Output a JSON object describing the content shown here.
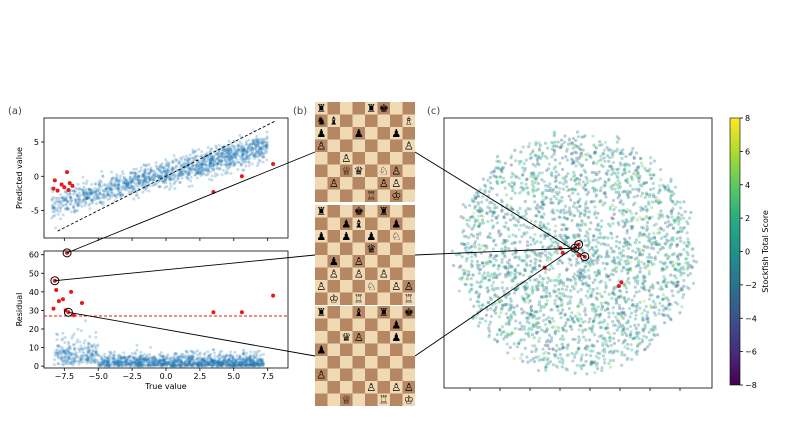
{
  "panels": {
    "a": "(a)",
    "b": "(b)",
    "c": "(c)"
  },
  "colors": {
    "scatter": "#1f77b4",
    "highlight": "#e41a1c",
    "light_square": "#f0d9b5",
    "dark_square": "#b58863"
  },
  "chart_data": [
    {
      "id": "predicted-vs-true",
      "type": "scatter",
      "title": "",
      "xlabel": "",
      "ylabel": "Predicted value",
      "xlim": [
        -9,
        9
      ],
      "ylim": [
        -9,
        8.5
      ],
      "yticks": [
        -5,
        0,
        5
      ],
      "xticks_unlabeled": [
        -7.5,
        -5,
        -2.5,
        0,
        2.5,
        5,
        7.5
      ],
      "bulk_series": {
        "description_points": "dense cloud of ~8000 points, roughly predicted = 0.6*true + noise",
        "x_range": [
          -8.5,
          7.5
        ],
        "slope": 0.55,
        "spread": 1.2
      },
      "reference_line": {
        "style": "dashed",
        "color": "#000000",
        "from": [
          -8,
          -8
        ],
        "to": [
          8,
          8
        ]
      },
      "outliers": [
        {
          "x": -8.3,
          "y": -1.8
        },
        {
          "x": -8.2,
          "y": -0.6
        },
        {
          "x": -8.0,
          "y": -2.1
        },
        {
          "x": -7.7,
          "y": -1.2
        },
        {
          "x": -7.5,
          "y": -1.6
        },
        {
          "x": -7.3,
          "y": 0.6
        },
        {
          "x": -7.1,
          "y": -1.0
        },
        {
          "x": -6.9,
          "y": -1.4
        },
        {
          "x": -7.2,
          "y": -2.0
        },
        {
          "x": 3.5,
          "y": -2.3
        },
        {
          "x": 5.6,
          "y": 0.0
        },
        {
          "x": 7.9,
          "y": 1.8
        }
      ]
    },
    {
      "id": "residual-vs-true",
      "type": "scatter",
      "title": "",
      "xlabel": "True value",
      "ylabel": "Residual",
      "xlim": [
        -9,
        9
      ],
      "ylim": [
        -1,
        62
      ],
      "xticks": [
        -7.5,
        -5.0,
        -2.5,
        0.0,
        2.5,
        5.0,
        7.5
      ],
      "xtick_labels": [
        "−7.5",
        "−5.0",
        "−2.5",
        "0.0",
        "2.5",
        "5.0",
        "7.5"
      ],
      "yticks": [
        0,
        10,
        20,
        30,
        40,
        50,
        60
      ],
      "threshold": {
        "value": 27,
        "style": "dashed",
        "color": "#e41a1c"
      },
      "outliers": [
        {
          "x": -7.3,
          "y": 61,
          "circled": true
        },
        {
          "x": -8.2,
          "y": 46,
          "circled": true
        },
        {
          "x": -8.1,
          "y": 41
        },
        {
          "x": -7.9,
          "y": 35
        },
        {
          "x": -7.6,
          "y": 36
        },
        {
          "x": -7.0,
          "y": 40
        },
        {
          "x": -6.2,
          "y": 34
        },
        {
          "x": -7.4,
          "y": 30
        },
        {
          "x": -7.2,
          "y": 29,
          "circled": true
        },
        {
          "x": -8.3,
          "y": 31
        },
        {
          "x": -6.8,
          "y": 27.5
        },
        {
          "x": 3.5,
          "y": 29
        },
        {
          "x": 5.6,
          "y": 29
        },
        {
          "x": 7.9,
          "y": 38
        }
      ]
    },
    {
      "id": "embedding-map",
      "type": "scatter",
      "title": "",
      "xlabel": "",
      "ylabel": "",
      "colorbar": {
        "label": "Stockfish Total Score",
        "min": -8,
        "max": 8,
        "ticks": [
          8,
          6,
          4,
          2,
          0,
          -2,
          -4,
          -6,
          -8
        ],
        "tick_labels": [
          "8",
          "6",
          "4",
          "2",
          "0",
          "−2",
          "−4",
          "−6",
          "−8"
        ],
        "colormap": "viridis"
      },
      "highlighted_points": [
        {
          "cx": 0.03,
          "cy": 0.02
        },
        {
          "cx": -0.12,
          "cy": -0.04
        },
        {
          "cx": -0.25,
          "cy": 0.12
        },
        {
          "cx": 0.38,
          "cy": 0.24
        },
        {
          "cx": 0.36,
          "cy": 0.27
        },
        {
          "cx": -0.1,
          "cy": 0.0
        }
      ],
      "circled_points": [
        {
          "cx": 0.08,
          "cy": 0.03
        },
        {
          "cx": 0.0,
          "cy": -0.04
        },
        {
          "cx": 0.03,
          "cy": -0.07
        }
      ]
    }
  ],
  "boards": [
    {
      "rows": [
        "♜   ♜♚  ",
        "♞♝     ♗",
        "♟  ♟  ♟ ",
        "♙      ♙",
        "  ♙     ",
        "  ♕♛ ♘♙ ",
        " ♙   ♙♙ ",
        "    ♖ ♔ "
      ]
    },
    {
      "rows": [
        "♜  ♚ ♜  ",
        "  ♟♝  ♟ ",
        "♟ ♟ ♟ ♘ ",
        "    ♛   ",
        " ♟ ♙    ",
        " ♙ ♙ ♙  ",
        "♙   ♘ ♙♙",
        " ♔ ♖   ♖"
      ]
    },
    {
      "rows": [
        "♜  ♝ ♜ ♚",
        "      ♟ ",
        "  ♛♙  ♟ ",
        "♟       ",
        "        ",
        "♙       ",
        "    ♙ ♙♙",
        "  ♕  ♖ ♔"
      ]
    }
  ]
}
